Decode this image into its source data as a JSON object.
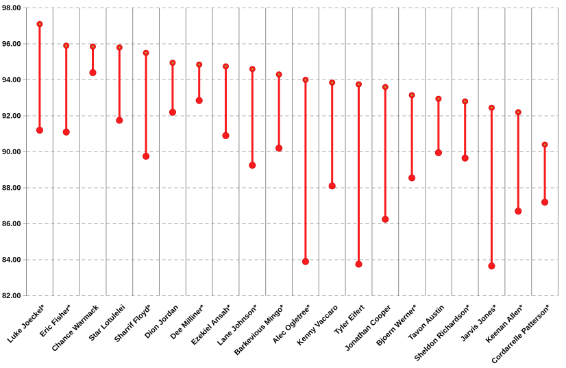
{
  "chart_data": {
    "type": "dumbbell-range",
    "title": "",
    "xlabel": "",
    "ylabel": "",
    "categories": [
      "Luke Joeckel*",
      "Eric Fisher*",
      "Chance Warmack",
      "Star Lotulelei",
      "Sharrif Floyd*",
      "Dion Jordan",
      "Dee Milliner*",
      "Ezekiel Ansah*",
      "Lane Johnson*",
      "Barkevious Mingo*",
      "Alec Ogletree*",
      "Kenny Vaccaro",
      "Tyler Eifert",
      "Jonathan Cooper",
      "Bjoern Werner*",
      "Tavon Austin",
      "Sheldon Richardson*",
      "Jarvis Jones*",
      "Keenan Allen*",
      "Cordarrelle Patterson*"
    ],
    "series": [
      {
        "name": "high",
        "values": [
          97.1,
          95.9,
          95.85,
          95.8,
          95.5,
          94.95,
          94.85,
          94.75,
          94.6,
          94.3,
          94.0,
          93.85,
          93.75,
          93.6,
          93.15,
          92.95,
          92.8,
          92.45,
          92.2,
          90.4
        ]
      },
      {
        "name": "low",
        "values": [
          91.2,
          91.1,
          94.4,
          91.75,
          89.75,
          92.2,
          92.85,
          90.9,
          89.25,
          90.2,
          83.9,
          88.1,
          83.75,
          86.25,
          88.55,
          89.95,
          89.65,
          83.65,
          86.7,
          87.2
        ]
      }
    ],
    "ylim": [
      82,
      98
    ],
    "ytick_step": 2,
    "ytick_labels": [
      "98.00",
      "96.00",
      "94.00",
      "92.00",
      "90.00",
      "88.00",
      "86.00",
      "84.00",
      "82.00"
    ],
    "legend_position": "none",
    "grid": {
      "horizontal": "dashed",
      "vertical": "solid"
    },
    "colors": {
      "line": "#f91b1d",
      "marker_fill": "#f91b1d",
      "marker_edge": "#d91113",
      "high_marker_center": "#a8a23a",
      "h_gridline": "#a9a9a9",
      "v_gridline": "#8c8c8c",
      "axis_text": "#000000"
    }
  }
}
